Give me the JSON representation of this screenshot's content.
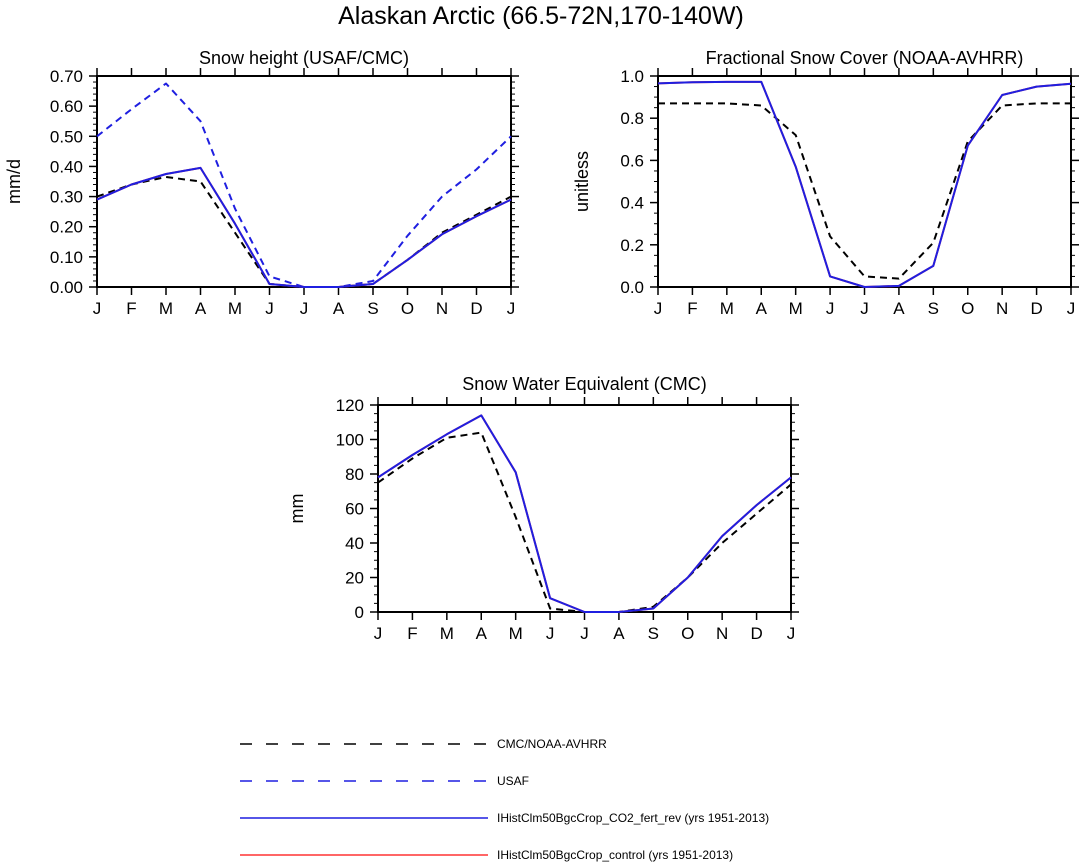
{
  "figure": {
    "title": "Alaskan Arctic (66.5-72N,170-140W)"
  },
  "colors": {
    "CMC/NOAA-AVHRR": "#000000",
    "USAF": "#1f1fe0",
    "IHistClm50BgcCrop_CO2_fert_rev (yrs 1951-2013)": "#1f1fe0",
    "IHistClm50BgcCrop_control (yrs 1951-2013)": "#ff3333"
  },
  "legend": {
    "entries": [
      {
        "label": "CMC/NOAA-AVHRR",
        "color": "#000000",
        "dash": "dashed-long"
      },
      {
        "label": "USAF",
        "color": "#1f1fe0",
        "dash": "dashed-long"
      },
      {
        "label": "IHistClm50BgcCrop_CO2_fert_rev (yrs 1951-2013)",
        "color": "#1f1fe0",
        "dash": "solid"
      },
      {
        "label": "IHistClm50BgcCrop_control (yrs 1951-2013)",
        "color": "#ff3333",
        "dash": "solid"
      }
    ]
  },
  "chart_data": [
    {
      "type": "line",
      "title": "Snow height (USAF/CMC)",
      "xlabel": "",
      "ylabel": "mm/d",
      "categories": [
        "J",
        "F",
        "M",
        "A",
        "M",
        "J",
        "J",
        "A",
        "S",
        "O",
        "N",
        "D",
        "J"
      ],
      "ylim": [
        0,
        0.7
      ],
      "yticks": [
        "0.00",
        "0.10",
        "0.20",
        "0.30",
        "0.40",
        "0.50",
        "0.60",
        "0.70"
      ],
      "grid": false,
      "series": [
        {
          "name": "CMC/NOAA-AVHRR",
          "style": "dashed",
          "color": "#000000",
          "values": [
            0.3,
            0.34,
            0.365,
            0.35,
            0.18,
            0.01,
            0.0,
            0.0,
            0.01,
            0.09,
            0.18,
            0.24,
            0.3
          ]
        },
        {
          "name": "USAF",
          "style": "dashed",
          "color": "#1f1fe0",
          "values": [
            0.5,
            0.59,
            0.675,
            0.55,
            0.26,
            0.035,
            0.0,
            0.0,
            0.02,
            0.17,
            0.3,
            0.39,
            0.5
          ]
        },
        {
          "name": "IHistClm50BgcCrop_control (yrs 1951-2013)",
          "style": "solid",
          "color": "#ff3333",
          "values": [
            0.29,
            0.34,
            0.375,
            0.395,
            0.21,
            0.01,
            0.0,
            0.0,
            0.01,
            0.09,
            0.175,
            0.235,
            0.29
          ]
        },
        {
          "name": "IHistClm50BgcCrop_CO2_fert_rev (yrs 1951-2013)",
          "style": "solid",
          "color": "#1f1fe0",
          "values": [
            0.29,
            0.34,
            0.375,
            0.395,
            0.21,
            0.01,
            0.0,
            0.0,
            0.01,
            0.09,
            0.175,
            0.235,
            0.29
          ]
        }
      ]
    },
    {
      "type": "line",
      "title": "Fractional Snow Cover (NOAA-AVHRR)",
      "xlabel": "",
      "ylabel": "unitless",
      "categories": [
        "J",
        "F",
        "M",
        "A",
        "M",
        "J",
        "J",
        "A",
        "S",
        "O",
        "N",
        "D",
        "J"
      ],
      "ylim": [
        0,
        1.0
      ],
      "yticks": [
        "0.0",
        "0.2",
        "0.4",
        "0.6",
        "0.8",
        "1.0"
      ],
      "grid": false,
      "series": [
        {
          "name": "CMC/NOAA-AVHRR",
          "style": "dashed",
          "color": "#000000",
          "values": [
            0.87,
            0.87,
            0.87,
            0.86,
            0.72,
            0.24,
            0.05,
            0.04,
            0.21,
            0.69,
            0.86,
            0.87,
            0.87
          ]
        },
        {
          "name": "IHistClm50BgcCrop_control (yrs 1951-2013)",
          "style": "solid",
          "color": "#ff3333",
          "values": [
            0.965,
            0.97,
            0.972,
            0.972,
            0.57,
            0.05,
            0.0,
            0.005,
            0.1,
            0.67,
            0.91,
            0.95,
            0.963
          ]
        },
        {
          "name": "IHistClm50BgcCrop_CO2_fert_rev (yrs 1951-2013)",
          "style": "solid",
          "color": "#1f1fe0",
          "values": [
            0.965,
            0.97,
            0.972,
            0.972,
            0.57,
            0.05,
            0.0,
            0.005,
            0.1,
            0.67,
            0.91,
            0.95,
            0.963
          ]
        }
      ]
    },
    {
      "type": "line",
      "title": "Snow Water Equivalent (CMC)",
      "xlabel": "",
      "ylabel": "mm",
      "categories": [
        "J",
        "F",
        "M",
        "A",
        "M",
        "J",
        "J",
        "A",
        "S",
        "O",
        "N",
        "D",
        "J"
      ],
      "ylim": [
        0,
        120
      ],
      "yticks": [
        "0",
        "20",
        "40",
        "60",
        "80",
        "100",
        "120"
      ],
      "grid": false,
      "series": [
        {
          "name": "CMC/NOAA-AVHRR",
          "style": "dashed",
          "color": "#000000",
          "values": [
            75,
            89,
            101,
            104,
            55,
            2,
            0,
            0,
            3,
            20,
            40,
            57,
            74
          ]
        },
        {
          "name": "IHistClm50BgcCrop_control (yrs 1951-2013)",
          "style": "solid",
          "color": "#ff3333",
          "values": [
            78,
            91,
            103,
            114,
            81,
            8,
            0,
            0,
            2,
            20,
            44,
            62,
            78
          ]
        },
        {
          "name": "IHistClm50BgcCrop_CO2_fert_rev (yrs 1951-2013)",
          "style": "solid",
          "color": "#1f1fe0",
          "values": [
            78,
            91,
            103,
            114,
            81,
            8,
            0,
            0,
            2,
            20,
            44,
            62,
            78
          ]
        }
      ]
    }
  ]
}
